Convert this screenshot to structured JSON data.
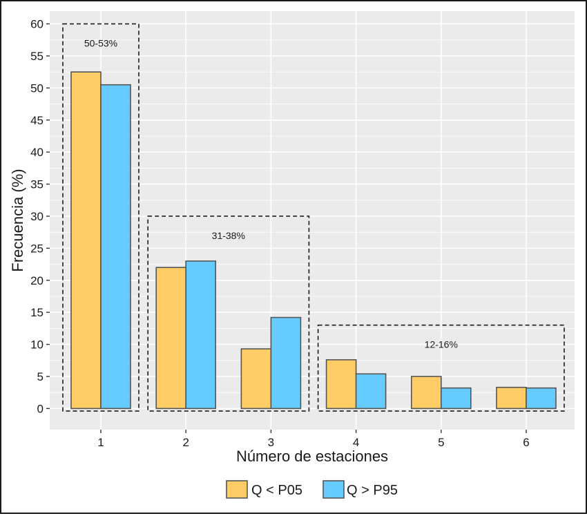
{
  "chart_data": {
    "type": "bar",
    "xlabel": "Número de estaciones",
    "ylabel": "Frecuencia (%)",
    "ylim": [
      -3.3,
      62
    ],
    "y_ticks": [
      0,
      5,
      10,
      15,
      20,
      25,
      30,
      35,
      40,
      45,
      50,
      55,
      60
    ],
    "categories": [
      "1",
      "2",
      "3",
      "4",
      "5",
      "6"
    ],
    "grid": true,
    "legend_position": "bottom",
    "series": [
      {
        "name": "Q < P05",
        "color": "#FFCC66",
        "values": [
          52.5,
          22.0,
          9.3,
          7.6,
          5.0,
          3.3
        ]
      },
      {
        "name": "Q > P95",
        "color": "#66CCFF",
        "values": [
          50.5,
          23.0,
          14.2,
          5.4,
          3.2,
          3.2
        ]
      }
    ],
    "annotations": [
      {
        "label": "50-53%",
        "x_from": 1,
        "x_to": 1,
        "y_top": 60,
        "label_y": 57
      },
      {
        "label": "31-38%",
        "x_from": 2,
        "x_to": 3,
        "y_top": 30,
        "label_y": 27
      },
      {
        "label": "12-16%",
        "x_from": 4,
        "x_to": 6,
        "y_top": 13,
        "label_y": 10
      }
    ]
  }
}
